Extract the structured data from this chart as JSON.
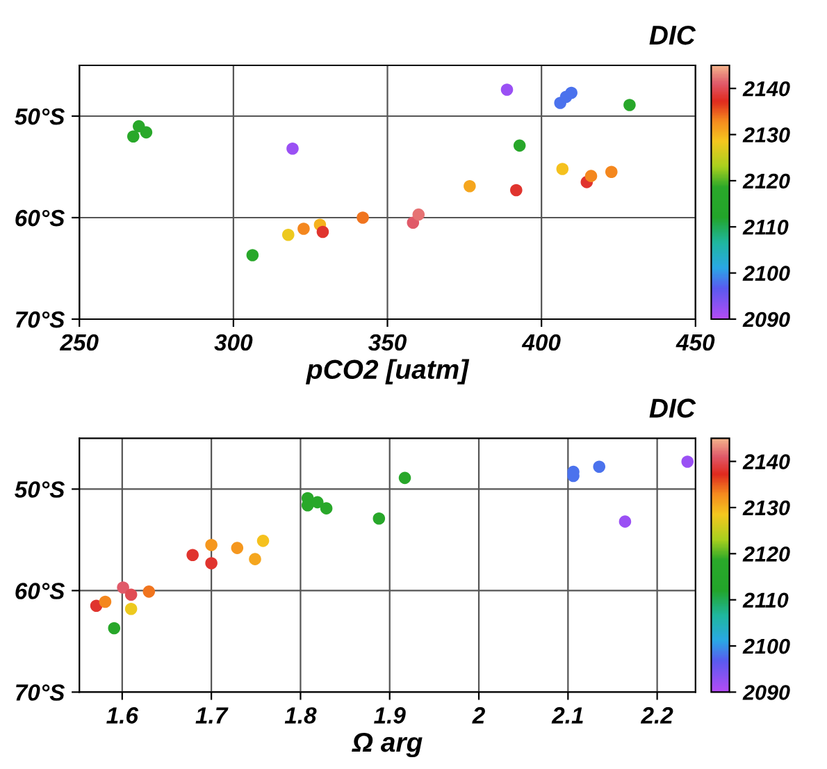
{
  "chart_data": [
    {
      "type": "scatter",
      "xlabel": "pCO2 [uatm]",
      "clabel": "DIC",
      "marker": "circle",
      "grid": true,
      "legend": false,
      "xlim": [
        250,
        450
      ],
      "xticks": [
        250,
        300,
        350,
        400,
        450
      ],
      "ylim": [
        -70,
        -45
      ],
      "yticks": [
        {
          "value": -70,
          "label": "70°S"
        },
        {
          "value": -60,
          "label": "60°S"
        },
        {
          "value": -50,
          "label": "50°S"
        }
      ],
      "clim": [
        2090,
        2145
      ],
      "cticks": [
        2090,
        2100,
        2110,
        2120,
        2130,
        2140
      ],
      "x": [
        267.5,
        269.3,
        271.7,
        319.2,
        306.2,
        317.8,
        322.8,
        328.1,
        329.0,
        342.0,
        358.3,
        360.1,
        376.7,
        388.8,
        391.8,
        392.9,
        406.8,
        406.1,
        408.0,
        409.7,
        414.7,
        416.1,
        422.7,
        428.6
      ],
      "values": [
        -52.0,
        -51.0,
        -51.6,
        -53.2,
        -63.7,
        -61.7,
        -61.1,
        -60.7,
        -61.4,
        -60.0,
        -60.5,
        -59.7,
        -56.9,
        -47.4,
        -57.3,
        -52.9,
        -55.2,
        -48.7,
        -48.1,
        -47.7,
        -56.5,
        -55.9,
        -55.5,
        -48.9
      ],
      "cvalues": [
        2118,
        2118,
        2118,
        2092,
        2117,
        2128,
        2133,
        2130,
        2138,
        2134,
        2141,
        2142,
        2131,
        2092,
        2138,
        2117,
        2129,
        2098,
        2098,
        2098,
        2138,
        2133,
        2133,
        2117
      ]
    },
    {
      "type": "scatter",
      "xlabel": "Ω arg",
      "clabel": "DIC",
      "marker": "circle",
      "grid": true,
      "legend": false,
      "xlim": [
        1.552,
        2.243
      ],
      "xticks": [
        1.6,
        1.7,
        1.8,
        1.9,
        2,
        2.1,
        2.2
      ],
      "ylim": [
        -70,
        -45
      ],
      "yticks": [
        {
          "value": -70,
          "label": "70°S"
        },
        {
          "value": -60,
          "label": "60°S"
        },
        {
          "value": -50,
          "label": "50°S"
        }
      ],
      "clim": [
        2090,
        2145
      ],
      "cticks": [
        2090,
        2100,
        2110,
        2120,
        2130,
        2140
      ],
      "x": [
        1.571,
        1.581,
        1.601,
        1.61,
        1.61,
        1.591,
        1.63,
        1.679,
        1.7,
        1.7,
        1.729,
        1.749,
        1.758,
        1.808,
        1.808,
        1.819,
        1.829,
        1.888,
        1.917,
        2.106,
        2.106,
        2.135,
        2.164,
        2.234
      ],
      "values": [
        -61.5,
        -61.1,
        -59.7,
        -60.4,
        -61.8,
        -63.7,
        -60.1,
        -56.5,
        -55.5,
        -57.3,
        -55.8,
        -56.9,
        -55.1,
        -50.9,
        -51.6,
        -51.3,
        -51.9,
        -52.9,
        -48.9,
        -48.3,
        -48.7,
        -47.8,
        -53.2,
        -47.3
      ],
      "cvalues": [
        2138,
        2133,
        2141,
        2140,
        2128,
        2117,
        2134,
        2138,
        2132,
        2138,
        2132,
        2131,
        2129,
        2118,
        2118,
        2118,
        2118,
        2117,
        2117,
        2098,
        2098,
        2098,
        2092,
        2092
      ]
    }
  ]
}
